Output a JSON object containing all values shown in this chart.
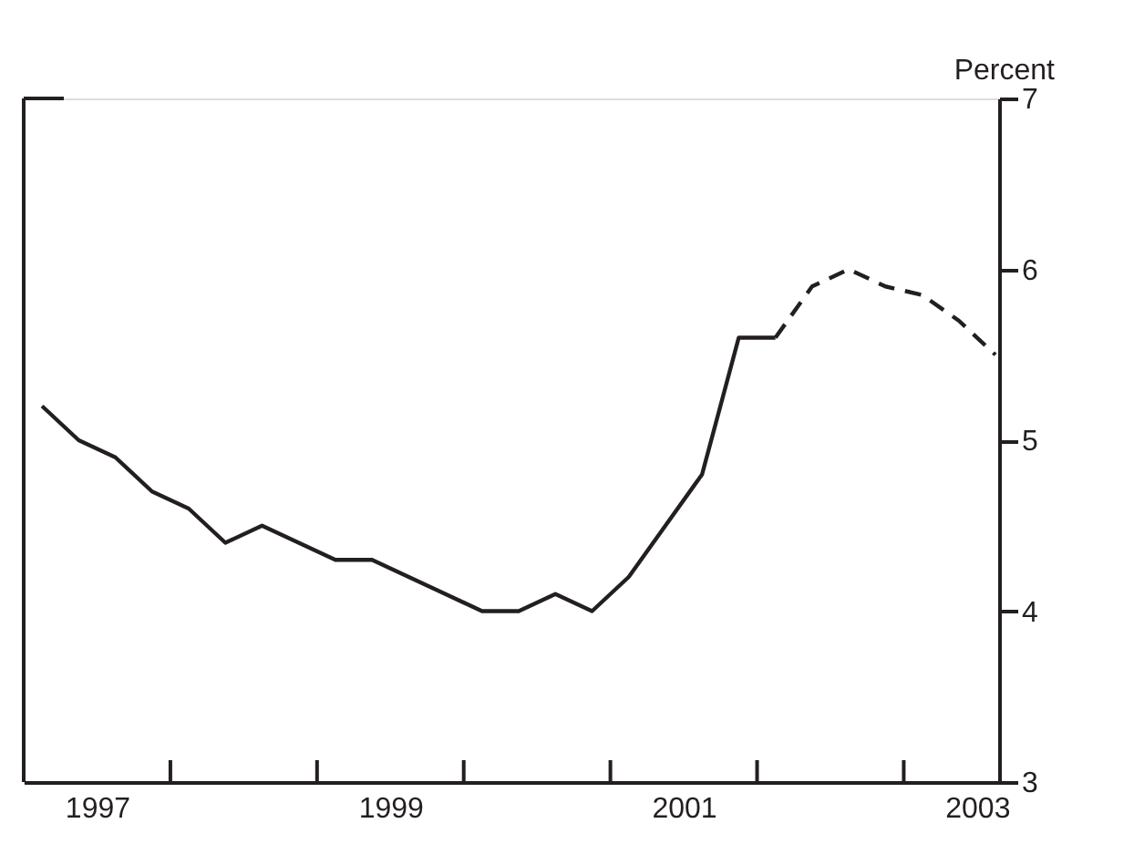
{
  "chart_data": {
    "type": "line",
    "ylabel": "Percent",
    "xlim": [
      1997,
      2003.65
    ],
    "ylim": [
      3,
      7
    ],
    "yticks": [
      3,
      4,
      5,
      6,
      7
    ],
    "xticks": [
      {
        "value": 1997.5,
        "label": "1997"
      },
      {
        "value": 1998,
        "label": null
      },
      {
        "value": 1999,
        "label": null
      },
      {
        "value": 1999.5,
        "label": "1999"
      },
      {
        "value": 2000,
        "label": null
      },
      {
        "value": 2001,
        "label": null
      },
      {
        "value": 2001.5,
        "label": "2001"
      },
      {
        "value": 2002,
        "label": null
      },
      {
        "value": 2003,
        "label": null
      },
      {
        "value": 2003.5,
        "label": "2003"
      }
    ],
    "grid": false,
    "marker": "none",
    "series": [
      {
        "color": "#231f20",
        "line_style": "solid",
        "x": [
          1997.125,
          1997.375,
          1997.625,
          1997.875,
          1998.125,
          1998.375,
          1998.625,
          1998.875,
          1999.125,
          1999.375,
          1999.625,
          1999.875,
          2000.125,
          2000.375,
          2000.625,
          2000.875,
          2001.125,
          2001.375,
          2001.625,
          2001.875,
          2002.125
        ],
        "values": [
          5.2,
          5.0,
          4.9,
          4.7,
          4.6,
          4.4,
          4.5,
          4.4,
          4.3,
          4.3,
          4.2,
          4.1,
          4.0,
          4.0,
          4.1,
          4.0,
          4.2,
          4.5,
          4.8,
          5.6,
          5.6
        ]
      },
      {
        "color": "#231f20",
        "line_style": "dashed",
        "x": [
          2002.125,
          2002.375,
          2002.625,
          2002.875,
          2003.125,
          2003.375,
          2003.625
        ],
        "values": [
          5.6,
          5.9,
          6.0,
          5.9,
          5.85,
          5.7,
          5.5
        ]
      }
    ]
  }
}
